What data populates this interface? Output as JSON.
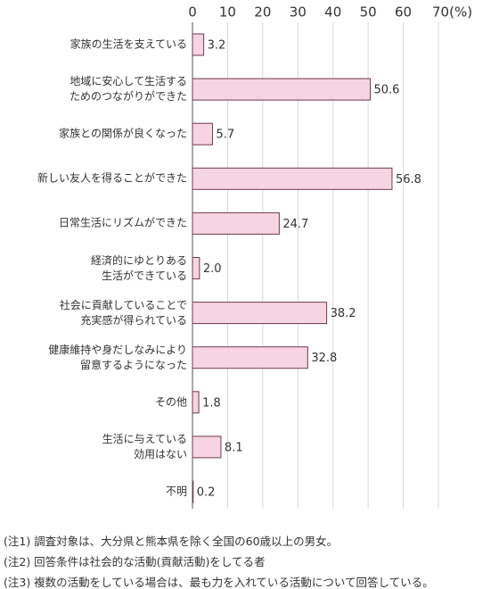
{
  "chart_data": {
    "type": "hbar",
    "categories": [
      "家族の生活を支えている",
      "地域に安心して生活する\nためのつながりができた",
      "家族との関係が良くなった",
      "新しい友人を得ることができた",
      "日常生活にリズムができた",
      "経済的にゆとりある\n生活ができている",
      "社会に貢献していることで\n充実感が得られている",
      "健康維持や身だしなみにより\n留意するようになった",
      "その他",
      "生活に与えている\n効用はない",
      "不明"
    ],
    "values": [
      3.2,
      50.6,
      5.7,
      56.8,
      24.7,
      2.0,
      38.2,
      32.8,
      1.8,
      8.1,
      0.2
    ],
    "value_labels": [
      "3.2",
      "50.6",
      "5.7",
      "56.8",
      "24.7",
      "2.0",
      "38.2",
      "32.8",
      "1.8",
      "8.1",
      "0.2"
    ],
    "color": "#f7d4e2",
    "edge_color": "#6e3a52",
    "xlim": [
      0,
      70
    ],
    "xticks": [
      0,
      10,
      20,
      30,
      40,
      50,
      60,
      {
        "value": 70,
        "label": "70(%)"
      }
    ],
    "grid": true
  },
  "notes": [
    "(注1) 調査対象は、大分県と熊本県を除く全国の60歳以上の男女。",
    "(注2) 回答条件は社会的な活動(貢献活動)をしてる者",
    "(注3) 複数の活動をしている場合は、最も力を入れている活動について回答している。"
  ]
}
